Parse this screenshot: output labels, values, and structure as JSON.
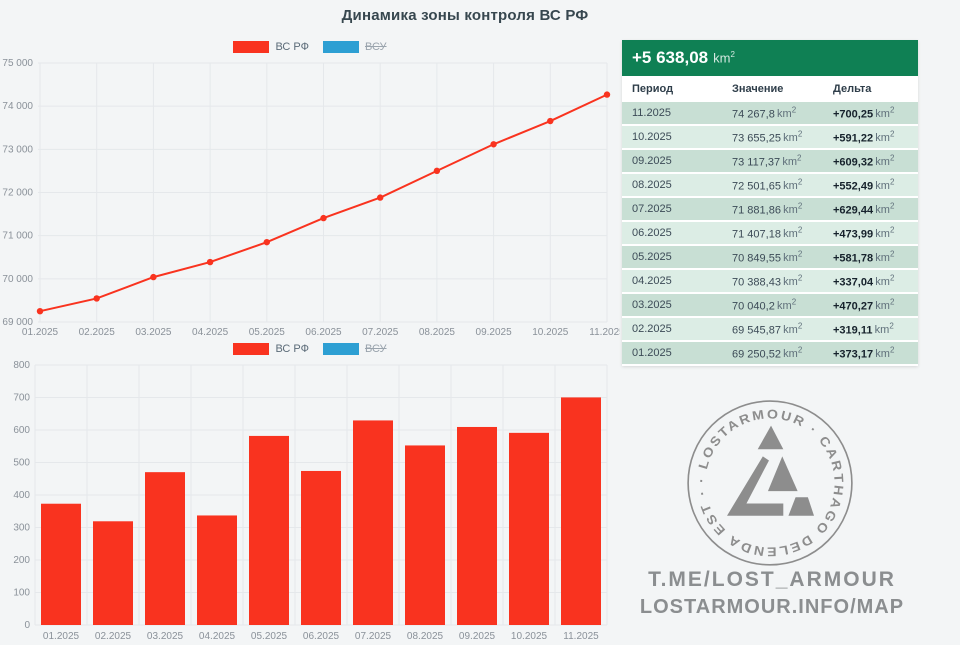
{
  "title": "Динамика зоны контроля ВС РФ",
  "legend": {
    "series1": "ВС РФ",
    "series2": "ВСУ"
  },
  "colors": {
    "red": "#f9331f",
    "blue": "#2d9fd3",
    "green_header": "#0f8054",
    "row_dark": "#c8dfd4",
    "row_light": "#dcede5",
    "grid": "#e5e8eb",
    "axis_text": "#8a9199",
    "title_text": "#37474f",
    "footer_gray": "#8b8e90",
    "logo_gray": "#8d8d8d"
  },
  "chart_data": [
    {
      "type": "line",
      "title": "",
      "x": [
        "01.2025",
        "02.2025",
        "03.2025",
        "04.2025",
        "05.2025",
        "06.2025",
        "07.2025",
        "08.2025",
        "09.2025",
        "10.2025",
        "11.2025"
      ],
      "series": [
        {
          "name": "ВС РФ",
          "color": "#f9331f",
          "hidden": false,
          "values": [
            69250.52,
            69545.87,
            70040.2,
            70388.43,
            70849.55,
            71407.18,
            71881.86,
            72501.65,
            73117.37,
            73655.25,
            74267.8
          ]
        },
        {
          "name": "ВСУ",
          "color": "#2d9fd3",
          "hidden": true,
          "values": []
        }
      ],
      "ylim": [
        69000,
        75000
      ],
      "ytick_step": 1000,
      "grid": true,
      "legend_position": "top"
    },
    {
      "type": "bar",
      "title": "",
      "categories": [
        "01.2025",
        "02.2025",
        "03.2025",
        "04.2025",
        "05.2025",
        "06.2025",
        "07.2025",
        "08.2025",
        "09.2025",
        "10.2025",
        "11.2025"
      ],
      "series": [
        {
          "name": "ВС РФ",
          "color": "#f9331f",
          "hidden": false,
          "values": [
            373.17,
            319.11,
            470.27,
            337.04,
            581.78,
            473.99,
            629.44,
            552.49,
            609.32,
            591.22,
            700.25
          ]
        },
        {
          "name": "ВСУ",
          "color": "#2d9fd3",
          "hidden": true,
          "values": []
        }
      ],
      "ylim": [
        0,
        800
      ],
      "ytick_step": 100,
      "grid": true,
      "legend_position": "top"
    }
  ],
  "table": {
    "total_delta": "+5 638,08",
    "unit_base": "km",
    "unit_sup": "2",
    "columns": [
      "Период",
      "Значение",
      "Дельта"
    ],
    "rows": [
      {
        "period": "11.2025",
        "value": "74 267,8",
        "delta": "+700,25"
      },
      {
        "period": "10.2025",
        "value": "73 655,25",
        "delta": "+591,22"
      },
      {
        "period": "09.2025",
        "value": "73 117,37",
        "delta": "+609,32"
      },
      {
        "period": "08.2025",
        "value": "72 501,65",
        "delta": "+552,49"
      },
      {
        "period": "07.2025",
        "value": "71 881,86",
        "delta": "+629,44"
      },
      {
        "period": "06.2025",
        "value": "71 407,18",
        "delta": "+473,99"
      },
      {
        "period": "05.2025",
        "value": "70 849,55",
        "delta": "+581,78"
      },
      {
        "period": "04.2025",
        "value": "70 388,43",
        "delta": "+337,04"
      },
      {
        "period": "03.2025",
        "value": "70 040,2",
        "delta": "+470,27"
      },
      {
        "period": "02.2025",
        "value": "69 545,87",
        "delta": "+319,11"
      },
      {
        "period": "01.2025",
        "value": "69 250,52",
        "delta": "+373,17"
      }
    ]
  },
  "watermark": {
    "ring_text": "· LOSTARMOUR · CARTHAGO DELENDA EST ·",
    "line1": "T.ME/LOST_ARMOUR",
    "line2": "LOSTARMOUR.INFO/MAP"
  }
}
